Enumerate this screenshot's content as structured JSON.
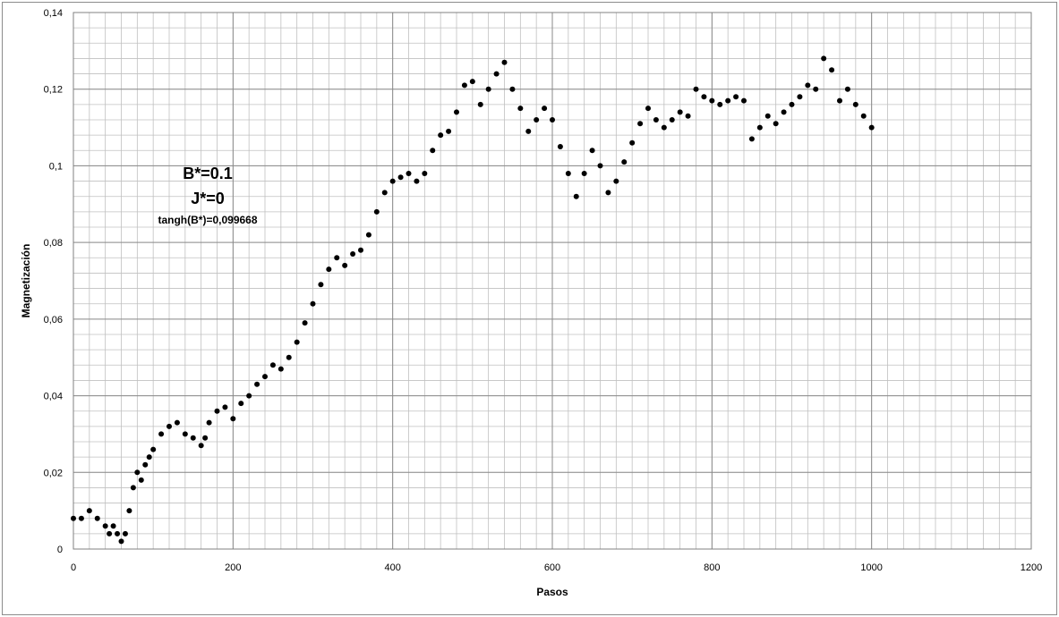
{
  "chart_data": {
    "type": "scatter",
    "title": "",
    "xlabel": "Pasos",
    "ylabel": "Magnetización",
    "xlim": [
      0,
      1200
    ],
    "ylim": [
      0,
      0.14
    ],
    "x_ticks": [
      "0",
      "200",
      "400",
      "600",
      "800",
      "1000",
      "1200"
    ],
    "y_ticks": [
      "0",
      "0,02",
      "0,04",
      "0,06",
      "0,08",
      "0,1",
      "0,12",
      "0,14"
    ],
    "grid": true,
    "legend": "none",
    "marker_color": "#000000",
    "annotations": {
      "line1": "B*=0.1",
      "line2": "J*=0",
      "line3": "tangh(B*)=0,099668"
    },
    "series": [
      {
        "x": [
          0,
          10,
          20,
          30,
          40,
          45,
          50,
          55,
          60,
          65,
          70,
          75,
          80,
          85,
          90,
          95,
          100,
          110,
          120,
          130,
          140,
          150,
          160,
          165,
          170,
          180,
          190,
          200,
          210,
          220,
          230,
          240,
          250,
          260,
          270,
          280,
          290,
          300,
          310,
          320,
          330,
          340,
          350,
          360,
          370,
          380,
          390,
          400,
          410,
          420,
          430,
          440,
          450,
          460,
          470,
          480,
          490,
          500,
          510,
          520,
          530,
          540,
          550,
          560,
          570,
          580,
          590,
          600,
          610,
          620,
          630,
          640,
          650,
          660,
          670,
          680,
          690,
          700,
          710,
          720,
          730,
          740,
          750,
          760,
          770,
          780,
          790,
          800,
          810,
          820,
          830,
          840,
          850,
          860,
          870,
          880,
          890,
          900,
          910,
          920,
          930,
          940,
          950,
          960,
          970,
          980,
          990,
          1000
        ],
        "y": [
          0.008,
          0.008,
          0.01,
          0.008,
          0.006,
          0.004,
          0.006,
          0.004,
          0.002,
          0.004,
          0.01,
          0.016,
          0.02,
          0.018,
          0.022,
          0.024,
          0.026,
          0.03,
          0.032,
          0.033,
          0.03,
          0.029,
          0.027,
          0.029,
          0.033,
          0.036,
          0.037,
          0.034,
          0.038,
          0.04,
          0.043,
          0.045,
          0.048,
          0.047,
          0.05,
          0.054,
          0.059,
          0.064,
          0.069,
          0.073,
          0.076,
          0.074,
          0.077,
          0.078,
          0.082,
          0.088,
          0.093,
          0.096,
          0.097,
          0.098,
          0.096,
          0.098,
          0.104,
          0.108,
          0.109,
          0.114,
          0.121,
          0.122,
          0.116,
          0.12,
          0.124,
          0.127,
          0.12,
          0.115,
          0.109,
          0.112,
          0.115,
          0.112,
          0.105,
          0.098,
          0.092,
          0.098,
          0.104,
          0.1,
          0.093,
          0.096,
          0.101,
          0.106,
          0.111,
          0.115,
          0.112,
          0.11,
          0.112,
          0.114,
          0.113,
          0.12,
          0.118,
          0.117,
          0.116,
          0.117,
          0.118,
          0.117,
          0.107,
          0.11,
          0.113,
          0.111,
          0.114,
          0.116,
          0.118,
          0.121,
          0.12,
          0.128,
          0.125,
          0.117,
          0.12,
          0.116,
          0.113,
          0.11
        ]
      }
    ]
  }
}
